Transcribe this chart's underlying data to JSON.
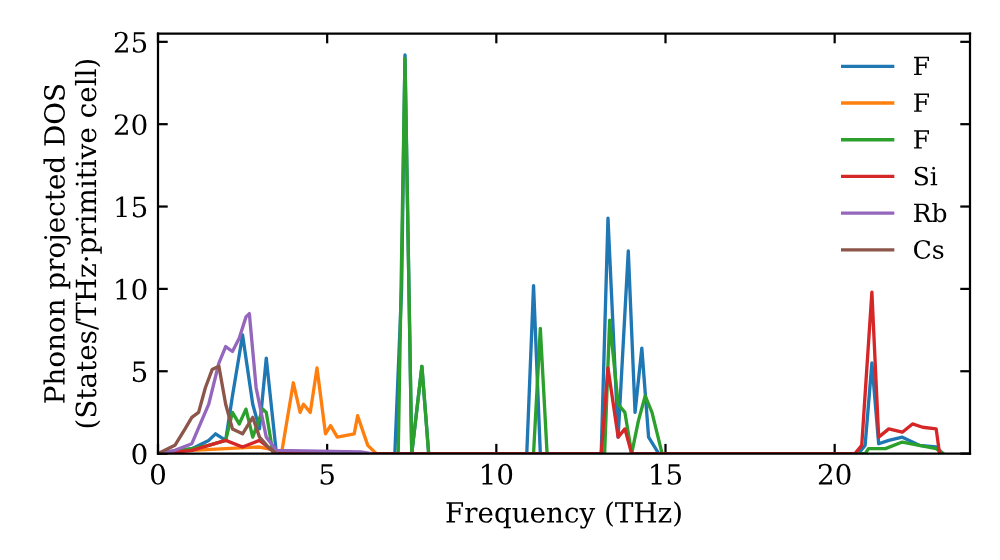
{
  "chart_data": {
    "type": "line",
    "xlabel": "Frequency (THz)",
    "ylabel": "Phonon projected DOS\n(States/THz·primitive cell)",
    "xlim": [
      0,
      24
    ],
    "ylim": [
      0,
      25.5
    ],
    "xticks": [
      0,
      5,
      10,
      15,
      20
    ],
    "yticks": [
      0,
      5,
      10,
      15,
      20,
      25
    ],
    "grid": false,
    "legend": "top right",
    "marker": "none",
    "line_style": "solid",
    "series": [
      {
        "name": "F",
        "color": "#1f77b4",
        "x": [
          0,
          1,
          1.5,
          1.7,
          2,
          2.2,
          2.5,
          2.8,
          3,
          3.2,
          3.5,
          7,
          7.2,
          7.3,
          7.5,
          7.8,
          8,
          10.9,
          11.1,
          11.3,
          13.1,
          13.3,
          13.6,
          13.9,
          14.1,
          14.3,
          14.5,
          14.8,
          20.7,
          20.9,
          21.1,
          21.3,
          21.6,
          22,
          22.5,
          23,
          23.2
        ],
        "values": [
          0,
          0.3,
          0.8,
          1.2,
          0.8,
          3.5,
          7.2,
          3,
          1.5,
          5.8,
          0,
          0,
          10,
          24.2,
          0,
          5.3,
          0,
          0,
          10.2,
          0,
          0,
          14.3,
          1,
          12.3,
          2.5,
          6.4,
          1,
          0,
          0,
          0.5,
          5.5,
          0.6,
          0.8,
          1,
          0.5,
          0.4,
          0
        ]
      },
      {
        "name": "F",
        "color": "#ff7f0e",
        "x": [
          0,
          1,
          2,
          3,
          3.5,
          3.65,
          4.0,
          4.2,
          4.3,
          4.5,
          4.7,
          4.95,
          5.1,
          5.3,
          5.8,
          5.9,
          6.2,
          6.45
        ],
        "values": [
          0,
          0.2,
          0.3,
          0.4,
          0.2,
          0,
          4.3,
          2.5,
          3,
          2.5,
          5.2,
          1.2,
          1.7,
          1,
          1.2,
          2.3,
          0.5,
          0
        ]
      },
      {
        "name": "F",
        "color": "#2ca02c",
        "x": [
          0,
          1,
          1.5,
          2,
          2.2,
          2.4,
          2.6,
          2.8,
          3.1,
          3.2,
          3.4,
          7.1,
          7.3,
          7.5,
          7.8,
          8,
          11.1,
          11.3,
          11.5,
          13.2,
          13.35,
          13.6,
          13.8,
          14,
          14.2,
          14.4,
          14.6,
          14.9,
          20.9,
          21,
          21.5,
          22,
          22.5,
          23,
          23.2
        ],
        "values": [
          0,
          0.3,
          0.5,
          0.8,
          2.5,
          1.8,
          2.7,
          1,
          2.7,
          2.5,
          0,
          0,
          24,
          0,
          5.3,
          0,
          0,
          7.6,
          0,
          0,
          8.1,
          3,
          2.5,
          0,
          2,
          3.5,
          2.5,
          0,
          0,
          0.3,
          0.3,
          0.7,
          0.5,
          0.3,
          0
        ]
      },
      {
        "name": "Si",
        "color": "#d62728",
        "x": [
          0,
          1,
          1.5,
          2,
          2.5,
          3,
          3.5,
          13.1,
          13.3,
          13.6,
          13.8,
          14,
          20.6,
          20.8,
          21.1,
          21.3,
          21.6,
          22,
          22.3,
          22.6,
          23,
          23.1
        ],
        "values": [
          0,
          0.2,
          0.5,
          0.8,
          0.4,
          0.8,
          0,
          0,
          5.2,
          1,
          1.5,
          0,
          0,
          0.5,
          9.8,
          1,
          1.5,
          1.3,
          1.8,
          1.6,
          1.5,
          0
        ]
      },
      {
        "name": "Rb",
        "color": "#9467bd",
        "x": [
          0,
          0.5,
          1,
          1.5,
          1.8,
          2,
          2.2,
          2.4,
          2.6,
          2.7,
          2.9,
          3.2,
          3.5,
          6,
          6.3
        ],
        "values": [
          0,
          0.2,
          0.6,
          3,
          5.5,
          6.5,
          6.2,
          7,
          8.3,
          8.5,
          4,
          1,
          0.2,
          0.1,
          0
        ]
      },
      {
        "name": "Cs",
        "color": "#8c564b",
        "x": [
          0,
          0.5,
          0.8,
          1,
          1.2,
          1.4,
          1.6,
          1.8,
          2,
          2.2,
          2.5,
          2.8,
          3,
          3.3,
          3.5
        ],
        "values": [
          0,
          0.5,
          1.5,
          2.2,
          2.5,
          4,
          5.1,
          5.3,
          3,
          1.5,
          1.2,
          2.2,
          1,
          0.3,
          0
        ]
      }
    ]
  }
}
